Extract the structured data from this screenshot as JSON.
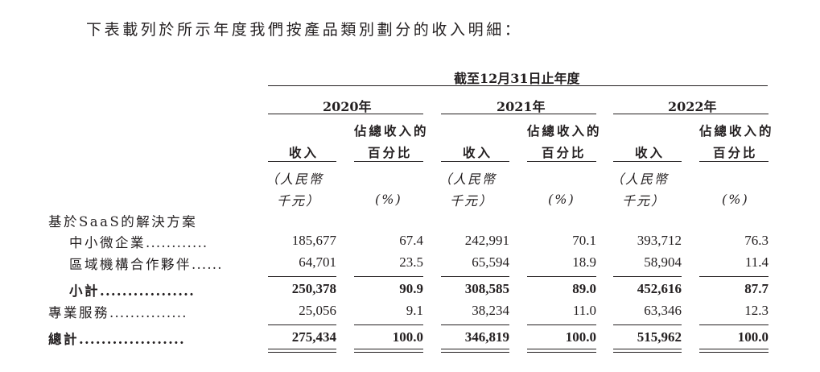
{
  "intro": "下表載列於所示年度我們按產品類別劃分的收入明細：",
  "period_header": "截至12月31日止年度",
  "years": [
    "2020年",
    "2021年",
    "2022年"
  ],
  "col_revenue": "收入",
  "col_pct_line1": "佔總收入的",
  "col_pct_line2": "百分比",
  "unit_rmb_line1": "（人民幣",
  "unit_rmb_line2": "千元）",
  "unit_pct": "(%)",
  "section_saas": "基於SaaS的解決方案",
  "rows": [
    {
      "label": "中小微企業",
      "dots": "............",
      "values": [
        "185,677",
        "67.4",
        "242,991",
        "70.1",
        "393,712",
        "76.3"
      ]
    },
    {
      "label": "區域機構合作夥伴",
      "dots": "......",
      "values": [
        "64,701",
        "23.5",
        "65,594",
        "18.9",
        "58,904",
        "11.4"
      ]
    },
    {
      "label": "小計",
      "dots": ".................",
      "values": [
        "250,378",
        "90.9",
        "308,585",
        "89.0",
        "452,616",
        "87.7"
      ]
    },
    {
      "label": "專業服務",
      "dots": "...............",
      "values": [
        "25,056",
        "9.1",
        "38,234",
        "11.0",
        "63,346",
        "12.3"
      ]
    },
    {
      "label": "總計",
      "dots": "...................",
      "values": [
        "275,434",
        "100.0",
        "346,819",
        "100.0",
        "515,962",
        "100.0"
      ]
    }
  ]
}
